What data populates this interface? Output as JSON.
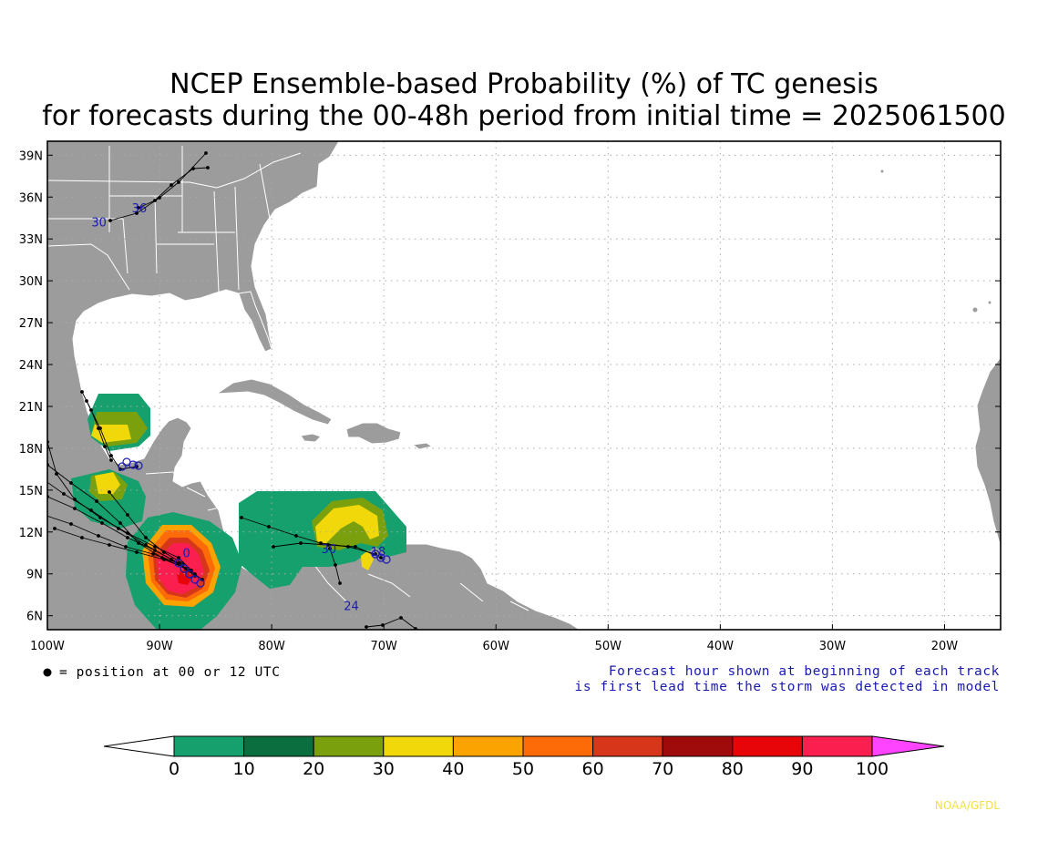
{
  "title": {
    "line1": "NCEP Ensemble-based Probability (%) of TC genesis",
    "line2": "for forecasts during the 00-48h period from initial time = 2025061500"
  },
  "map": {
    "lon_range": [
      -100,
      -15
    ],
    "lat_range": [
      5,
      40
    ],
    "ocean_color": "#ffffff",
    "land_color": "#9c9c9c",
    "border_color": "#ffffff",
    "gridlines": "dotted"
  },
  "lat_ticks": [
    {
      "lat": 39,
      "label": "39N"
    },
    {
      "lat": 36,
      "label": "36N"
    },
    {
      "lat": 33,
      "label": "33N"
    },
    {
      "lat": 30,
      "label": "30N"
    },
    {
      "lat": 27,
      "label": "27N"
    },
    {
      "lat": 24,
      "label": "24N"
    },
    {
      "lat": 21,
      "label": "21N"
    },
    {
      "lat": 18,
      "label": "18N"
    },
    {
      "lat": 15,
      "label": "15N"
    },
    {
      "lat": 12,
      "label": "12N"
    },
    {
      "lat": 9,
      "label": "9N"
    },
    {
      "lat": 6,
      "label": "6N"
    }
  ],
  "lon_ticks": [
    {
      "lon": -100,
      "label": "100W"
    },
    {
      "lon": -90,
      "label": "90W"
    },
    {
      "lon": -80,
      "label": "80W"
    },
    {
      "lon": -70,
      "label": "70W"
    },
    {
      "lon": -60,
      "label": "60W"
    },
    {
      "lon": -50,
      "label": "50W"
    },
    {
      "lon": -40,
      "label": "40W"
    },
    {
      "lon": -30,
      "label": "30W"
    },
    {
      "lon": -20,
      "label": "20W"
    }
  ],
  "legend": {
    "position_text": "= position at 00 or 12 UTC",
    "note_line1": "Forecast hour shown at beginning of each track",
    "note_line2": "is first lead time the storm was detected in model"
  },
  "colorbar": {
    "labels": [
      "0",
      "10",
      "20",
      "30",
      "40",
      "50",
      "60",
      "70",
      "80",
      "90",
      "100"
    ],
    "colors": [
      "#16a06e",
      "#0b6e3e",
      "#7aa00e",
      "#f1d80a",
      "#fba300",
      "#fd6a08",
      "#d8361a",
      "#9f0a0a",
      "#e8050a",
      "#fb1f50"
    ],
    "low_color": "#ffffff",
    "high_color": "#ff44ff"
  },
  "track_labels": [
    {
      "text": "30",
      "lon": -95.4,
      "lat": 33.9
    },
    {
      "text": "36",
      "lon": -91.8,
      "lat": 34.9
    },
    {
      "text": "30",
      "lon": -74.9,
      "lat": 10.5
    },
    {
      "text": "24",
      "lon": -72.9,
      "lat": 6.4
    },
    {
      "text": "18",
      "lon": -70.5,
      "lat": 10.3
    },
    {
      "text": "0",
      "lon": -87.6,
      "lat": 10.2
    }
  ],
  "credit": "NOAA/GFDL"
}
